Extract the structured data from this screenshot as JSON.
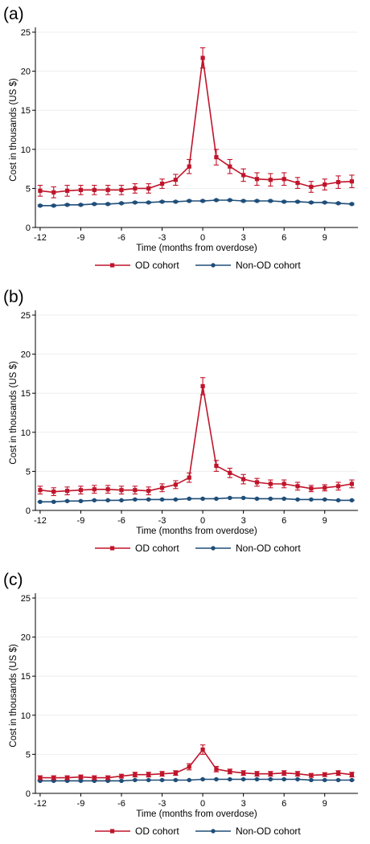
{
  "colors": {
    "od": "#c0142a",
    "non_od": "#1f4e79"
  },
  "chart_data": [
    {
      "type": "line",
      "panel_label": "(a)",
      "xlabel": "Time (months from overdose)",
      "ylabel": "Cost in thousands (US $)",
      "x": [
        -12,
        -11,
        -10,
        -9,
        -8,
        -7,
        -6,
        -5,
        -4,
        -3,
        -2,
        -1,
        0,
        1,
        2,
        3,
        4,
        5,
        6,
        7,
        8,
        9,
        10,
        11
      ],
      "xticks": [
        -12,
        -9,
        -6,
        -3,
        0,
        3,
        6,
        9
      ],
      "yticks": [
        0,
        5,
        10,
        15,
        20,
        25
      ],
      "ylim": [
        0,
        25
      ],
      "grid": true,
      "legend_position": "bottom",
      "series": [
        {
          "name": "OD cohort",
          "marker": "square",
          "values": [
            4.7,
            4.5,
            4.7,
            4.8,
            4.8,
            4.8,
            4.8,
            5.0,
            5.0,
            5.6,
            6.1,
            7.8,
            21.7,
            9.0,
            7.8,
            6.7,
            6.2,
            6.1,
            6.2,
            5.7,
            5.2,
            5.5,
            5.8,
            5.9
          ],
          "ci_half": [
            0.7,
            0.7,
            0.7,
            0.6,
            0.6,
            0.6,
            0.6,
            0.6,
            0.6,
            0.6,
            0.7,
            0.9,
            1.3,
            1.0,
            0.9,
            0.8,
            0.8,
            0.8,
            0.8,
            0.7,
            0.7,
            0.7,
            0.8,
            0.8
          ]
        },
        {
          "name": "Non-OD cohort",
          "marker": "circle",
          "values": [
            2.8,
            2.8,
            2.9,
            2.9,
            3.0,
            3.0,
            3.1,
            3.2,
            3.2,
            3.3,
            3.3,
            3.4,
            3.4,
            3.5,
            3.5,
            3.4,
            3.4,
            3.4,
            3.3,
            3.3,
            3.2,
            3.2,
            3.1,
            3.0
          ],
          "ci_half": [
            0.1,
            0.1,
            0.1,
            0.1,
            0.1,
            0.1,
            0.1,
            0.1,
            0.1,
            0.1,
            0.1,
            0.1,
            0.1,
            0.1,
            0.1,
            0.1,
            0.1,
            0.1,
            0.1,
            0.1,
            0.1,
            0.1,
            0.1,
            0.1
          ]
        }
      ]
    },
    {
      "type": "line",
      "panel_label": "(b)",
      "xlabel": "Time (months from overdose)",
      "ylabel": "Cost in thousands (US $)",
      "x": [
        -12,
        -11,
        -10,
        -9,
        -8,
        -7,
        -6,
        -5,
        -4,
        -3,
        -2,
        -1,
        0,
        1,
        2,
        3,
        4,
        5,
        6,
        7,
        8,
        9,
        10,
        11
      ],
      "xticks": [
        -12,
        -9,
        -6,
        -3,
        0,
        3,
        6,
        9
      ],
      "yticks": [
        0,
        5,
        10,
        15,
        20,
        25
      ],
      "ylim": [
        0,
        25
      ],
      "grid": true,
      "legend_position": "bottom",
      "series": [
        {
          "name": "OD cohort",
          "marker": "square",
          "values": [
            2.6,
            2.4,
            2.5,
            2.6,
            2.7,
            2.7,
            2.6,
            2.6,
            2.5,
            2.9,
            3.3,
            4.2,
            15.9,
            5.7,
            4.8,
            4.0,
            3.6,
            3.4,
            3.4,
            3.1,
            2.8,
            2.9,
            3.1,
            3.4
          ],
          "ci_half": [
            0.5,
            0.5,
            0.5,
            0.5,
            0.5,
            0.5,
            0.5,
            0.5,
            0.5,
            0.5,
            0.5,
            0.6,
            1.1,
            0.7,
            0.6,
            0.6,
            0.5,
            0.5,
            0.5,
            0.5,
            0.4,
            0.4,
            0.5,
            0.5
          ]
        },
        {
          "name": "Non-OD cohort",
          "marker": "circle",
          "values": [
            1.1,
            1.1,
            1.2,
            1.2,
            1.3,
            1.3,
            1.3,
            1.4,
            1.4,
            1.4,
            1.4,
            1.5,
            1.5,
            1.5,
            1.6,
            1.6,
            1.5,
            1.5,
            1.5,
            1.4,
            1.4,
            1.4,
            1.3,
            1.3
          ],
          "ci_half": [
            0.05,
            0.05,
            0.05,
            0.05,
            0.05,
            0.05,
            0.05,
            0.05,
            0.05,
            0.05,
            0.05,
            0.05,
            0.05,
            0.05,
            0.05,
            0.05,
            0.05,
            0.05,
            0.05,
            0.05,
            0.05,
            0.05,
            0.05,
            0.05
          ]
        }
      ]
    },
    {
      "type": "line",
      "panel_label": "(c)",
      "xlabel": "Time (months from overdose)",
      "ylabel": "Cost in thousands (US $)",
      "x": [
        -12,
        -11,
        -10,
        -9,
        -8,
        -7,
        -6,
        -5,
        -4,
        -3,
        -2,
        -1,
        0,
        1,
        2,
        3,
        4,
        5,
        6,
        7,
        8,
        9,
        10,
        11
      ],
      "xticks": [
        -12,
        -9,
        -6,
        -3,
        0,
        3,
        6,
        9
      ],
      "yticks": [
        0,
        5,
        10,
        15,
        20,
        25
      ],
      "ylim": [
        0,
        25
      ],
      "grid": true,
      "legend_position": "bottom",
      "series": [
        {
          "name": "OD cohort",
          "marker": "square",
          "values": [
            2.0,
            2.0,
            2.0,
            2.1,
            2.0,
            2.0,
            2.2,
            2.4,
            2.4,
            2.5,
            2.6,
            3.4,
            5.6,
            3.1,
            2.8,
            2.6,
            2.5,
            2.5,
            2.6,
            2.5,
            2.3,
            2.4,
            2.6,
            2.4
          ],
          "ci_half": [
            0.25,
            0.25,
            0.25,
            0.25,
            0.25,
            0.25,
            0.25,
            0.3,
            0.3,
            0.3,
            0.3,
            0.4,
            0.6,
            0.35,
            0.3,
            0.3,
            0.3,
            0.3,
            0.3,
            0.3,
            0.25,
            0.25,
            0.3,
            0.3
          ]
        },
        {
          "name": "Non-OD cohort",
          "marker": "circle",
          "values": [
            1.6,
            1.6,
            1.6,
            1.6,
            1.6,
            1.6,
            1.6,
            1.7,
            1.7,
            1.7,
            1.7,
            1.7,
            1.8,
            1.8,
            1.8,
            1.8,
            1.8,
            1.8,
            1.8,
            1.8,
            1.7,
            1.7,
            1.7,
            1.7
          ],
          "ci_half": [
            0.05,
            0.05,
            0.05,
            0.05,
            0.05,
            0.05,
            0.05,
            0.05,
            0.05,
            0.05,
            0.05,
            0.05,
            0.05,
            0.05,
            0.05,
            0.05,
            0.05,
            0.05,
            0.05,
            0.05,
            0.05,
            0.05,
            0.05,
            0.05
          ]
        }
      ]
    }
  ]
}
